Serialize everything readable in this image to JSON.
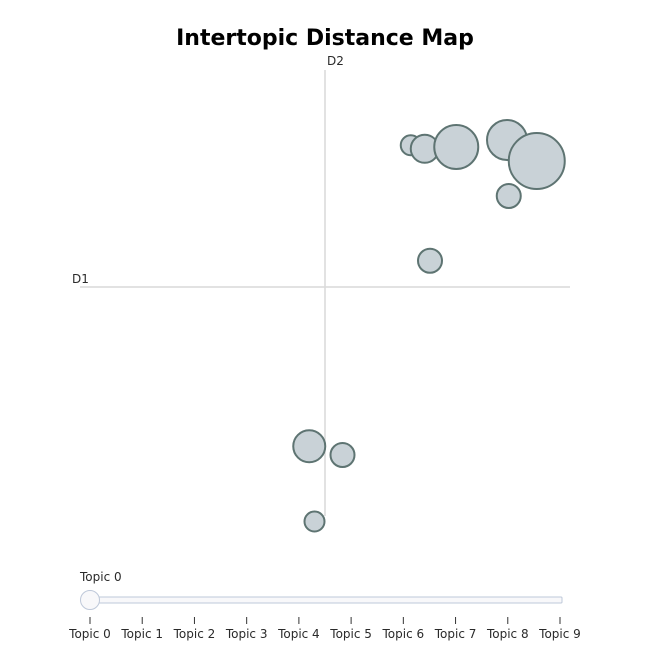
{
  "chart_data": {
    "type": "scatter",
    "title": "Intertopic Distance Map",
    "xlabel": "D1",
    "ylabel": "D2",
    "points": [
      {
        "x": 4.9,
        "y": 8.1,
        "size": 1
      },
      {
        "x": 5.7,
        "y": 7.9,
        "size": 3
      },
      {
        "x": 7.5,
        "y": 8.0,
        "size": 7
      },
      {
        "x": 10.4,
        "y": 8.4,
        "size": 6
      },
      {
        "x": 12.1,
        "y": 7.2,
        "size": 10
      },
      {
        "x": 10.5,
        "y": 5.2,
        "size": 2
      },
      {
        "x": 6.0,
        "y": 1.5,
        "size": 2
      },
      {
        "x": -0.9,
        "y": -9.1,
        "size": 4
      },
      {
        "x": 1.0,
        "y": -9.6,
        "size": 2
      },
      {
        "x": -0.6,
        "y": -13.4,
        "size": 1
      }
    ],
    "colors": {
      "fill": "#c9d2d7",
      "stroke": "#5e7472",
      "axis": "#d9d9d9"
    }
  },
  "slider": {
    "current_label": "Topic 0",
    "steps": [
      "Topic 0",
      "Topic 1",
      "Topic 2",
      "Topic 3",
      "Topic 4",
      "Topic 5",
      "Topic 6",
      "Topic 7",
      "Topic 8",
      "Topic 9"
    ],
    "active_index": 0
  }
}
